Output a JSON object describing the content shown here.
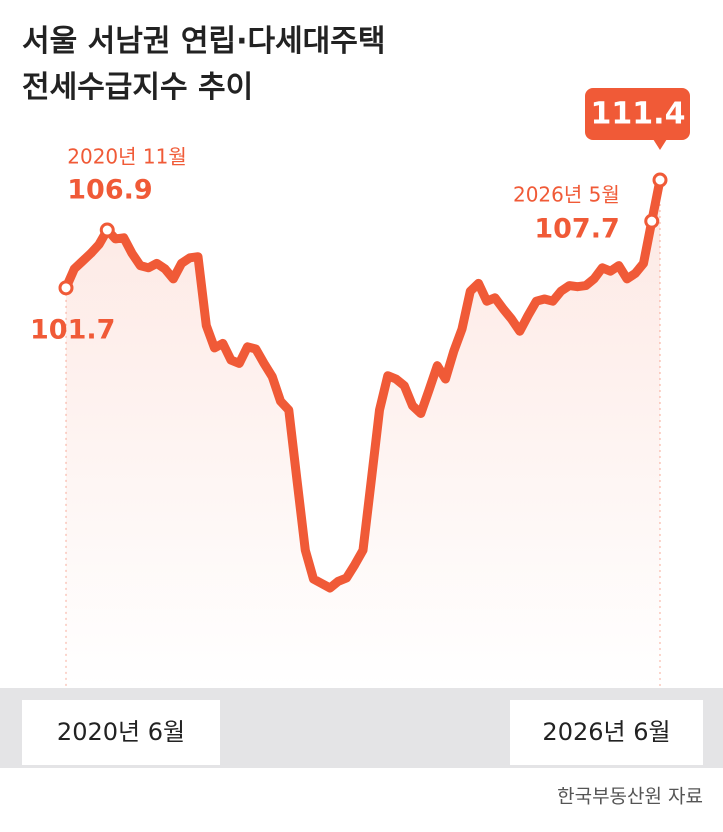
{
  "chart_data": {
    "type": "line",
    "title": "서울 서남권 연립·다세대주택\n전세수급지수 추이",
    "source": "한국부동산원 자료",
    "categories": [
      "2020년 6월",
      null,
      null,
      null,
      null,
      "2020년 11월",
      null,
      null,
      null,
      null,
      null,
      null,
      null,
      null,
      null,
      null,
      null,
      null,
      null,
      null,
      null,
      null,
      null,
      null,
      null,
      null,
      null,
      null,
      null,
      null,
      null,
      null,
      null,
      null,
      null,
      null,
      null,
      null,
      null,
      null,
      null,
      null,
      null,
      null,
      null,
      null,
      null,
      null,
      null,
      null,
      null,
      null,
      null,
      null,
      null,
      null,
      null,
      null,
      null,
      null,
      null,
      null,
      null,
      null,
      null,
      null,
      null,
      null,
      null,
      null,
      null,
      "2026년 5월",
      "2026년 6월"
    ],
    "values": [
      101.7,
      103.4,
      104.1,
      104.8,
      105.6,
      106.9,
      106.1,
      106.2,
      104.8,
      103.7,
      103.5,
      103.9,
      103.4,
      102.5,
      103.9,
      104.4,
      104.5,
      98.3,
      96.3,
      96.7,
      95.2,
      94.9,
      96.4,
      96.2,
      94.9,
      93.7,
      91.5,
      90.7,
      84.4,
      78.1,
      75.5,
      75.1,
      74.7,
      75.3,
      75.6,
      76.8,
      78.1,
      84.4,
      90.7,
      93.8,
      93.5,
      92.9,
      91.1,
      90.4,
      92.5,
      94.7,
      93.5,
      96.0,
      98.0,
      101.4,
      102.1,
      100.5,
      100.8,
      99.8,
      98.9,
      97.8,
      99.2,
      100.5,
      100.7,
      100.5,
      101.4,
      101.9,
      101.8,
      101.9,
      102.5,
      103.5,
      103.2,
      103.7,
      102.5,
      103.0,
      103.9,
      107.7,
      111.4
    ],
    "color": "#f05a37"
  }
}
